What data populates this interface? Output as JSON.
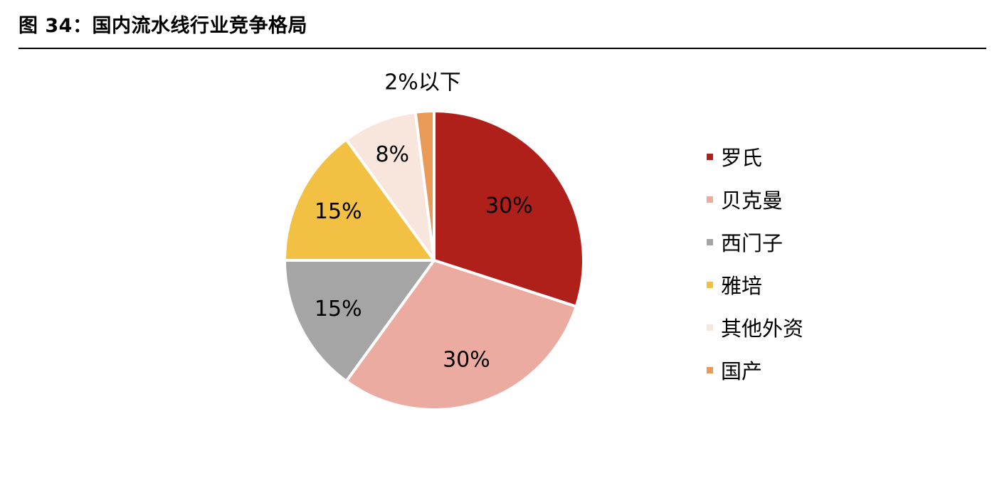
{
  "figure": {
    "title": "图 34：国内流水线行业竞争格局"
  },
  "chart_data": {
    "type": "pie",
    "title": "",
    "start_angle_deg": 0,
    "direction": "clockwise",
    "legend_position": "right",
    "slices": [
      {
        "name": "罗氏",
        "value": 30,
        "label": "30%",
        "color": "#B0201A"
      },
      {
        "name": "贝克曼",
        "value": 30,
        "label": "30%",
        "color": "#ECABA1"
      },
      {
        "name": "西门子",
        "value": 15,
        "label": "15%",
        "color": "#A5A5A5"
      },
      {
        "name": "雅培",
        "value": 15,
        "label": "15%",
        "color": "#F2C143"
      },
      {
        "name": "其他外资",
        "value": 8,
        "label": "8%",
        "color": "#F8E5DC"
      },
      {
        "name": "国产",
        "value": 2,
        "label": "2%以下",
        "color": "#E99A57"
      }
    ]
  }
}
